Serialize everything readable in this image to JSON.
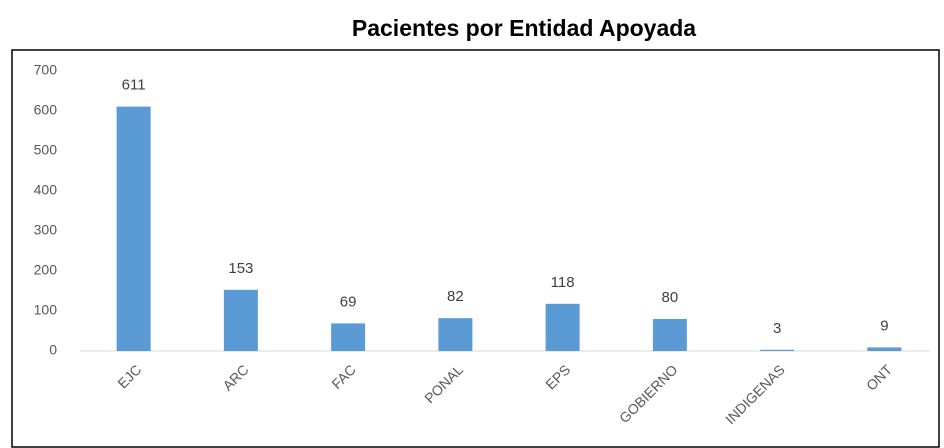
{
  "chart_data": {
    "type": "bar",
    "title": "Pacientes por Entidad Apoyada",
    "categories": [
      "EJC",
      "ARC",
      "FAC",
      "PONAL",
      "EPS",
      "GOBIERNO",
      "INDIGENAS",
      "ONT"
    ],
    "values": [
      611,
      153,
      69,
      82,
      118,
      80,
      3,
      9
    ],
    "color": "#5b9bd5",
    "ylim": [
      0,
      700
    ],
    "yticks": [
      0,
      100,
      200,
      300,
      400,
      500,
      600,
      700
    ],
    "grid": false
  }
}
